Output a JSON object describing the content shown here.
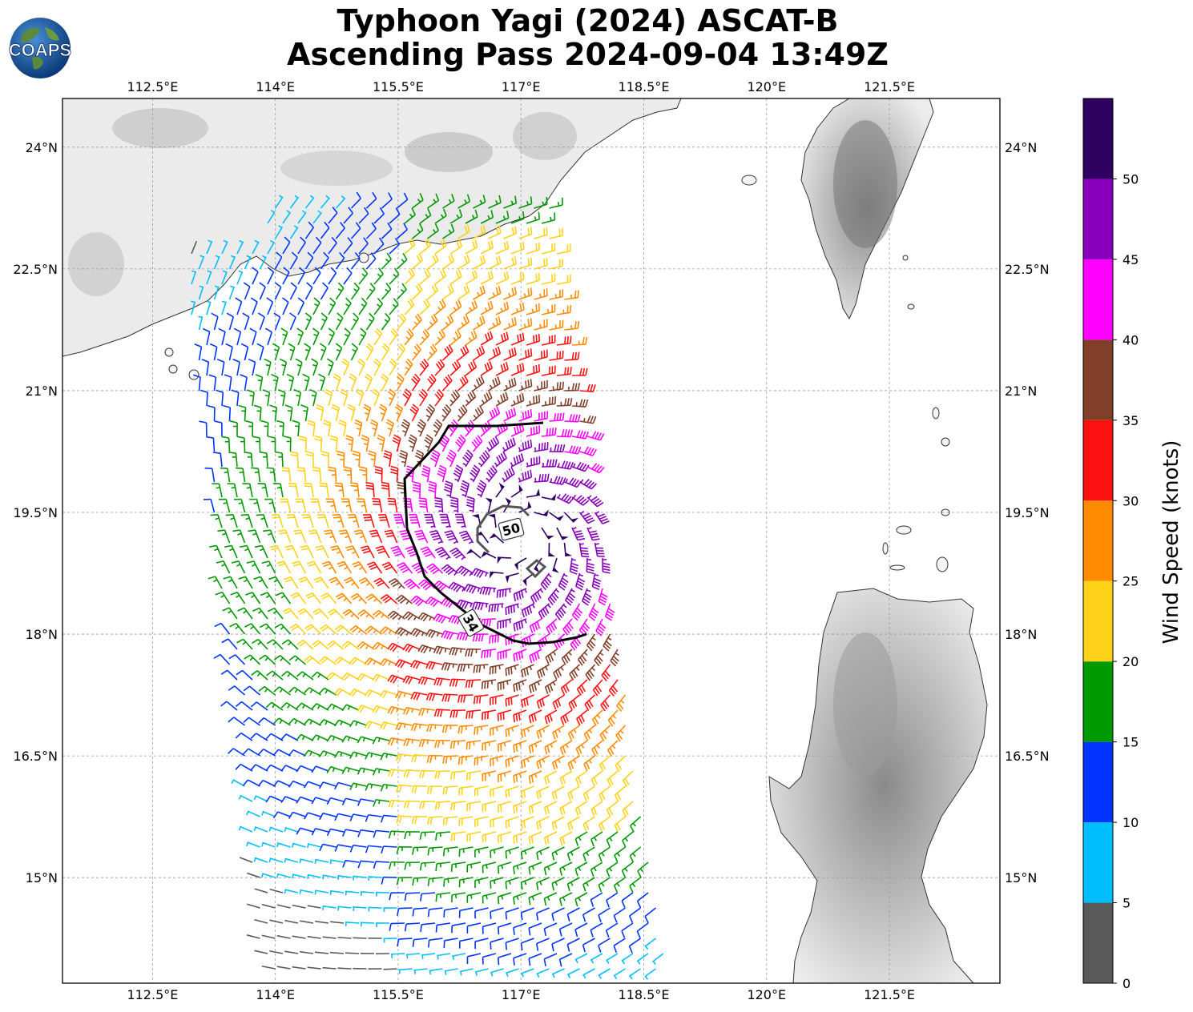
{
  "title": {
    "line1": "Typhoon Yagi (2024) ASCAT-B",
    "line2": "Ascending Pass 2024-09-04 13:49Z"
  },
  "logo": {
    "text": "COAPS",
    "icon": "globe-logo-icon"
  },
  "map": {
    "lon_range": [
      111.4,
      122.85
    ],
    "lat_range": [
      13.7,
      24.6
    ],
    "lon_ticks": [
      "112.5°E",
      "114°E",
      "115.5°E",
      "117°E",
      "118.5°E",
      "120°E",
      "121.5°E"
    ],
    "lon_tick_values": [
      112.5,
      114,
      115.5,
      117,
      118.5,
      120,
      121.5
    ],
    "lat_ticks": [
      "24°N",
      "22.5°N",
      "21°N",
      "19.5°N",
      "18°N",
      "16.5°N",
      "15°N"
    ],
    "lat_tick_values": [
      24,
      22.5,
      21,
      19.5,
      18,
      16.5,
      15
    ],
    "grid": true,
    "storm_center": {
      "lon": 117.0,
      "lat": 19.25
    }
  },
  "contours": [
    {
      "label": "34",
      "color": "#000000"
    },
    {
      "label": "50",
      "color": "#555555"
    }
  ],
  "colorbar": {
    "label": "Wind Speed (knots)",
    "ticks": [
      "0",
      "5",
      "10",
      "15",
      "20",
      "25",
      "30",
      "35",
      "40",
      "45",
      "50"
    ],
    "bins": [
      {
        "min": 0,
        "max": 5,
        "color": "#595959"
      },
      {
        "min": 5,
        "max": 10,
        "color": "#00bfff"
      },
      {
        "min": 10,
        "max": 15,
        "color": "#0033ff"
      },
      {
        "min": 15,
        "max": 20,
        "color": "#009900"
      },
      {
        "min": 20,
        "max": 25,
        "color": "#ffd21a"
      },
      {
        "min": 25,
        "max": 30,
        "color": "#ff8c00"
      },
      {
        "min": 30,
        "max": 35,
        "color": "#ff1111"
      },
      {
        "min": 35,
        "max": 40,
        "color": "#813e28"
      },
      {
        "min": 40,
        "max": 45,
        "color": "#ff00ff"
      },
      {
        "min": 45,
        "max": 50,
        "color": "#8800bb"
      },
      {
        "min": 50,
        "max": 55,
        "color": "#2e0060"
      }
    ]
  }
}
